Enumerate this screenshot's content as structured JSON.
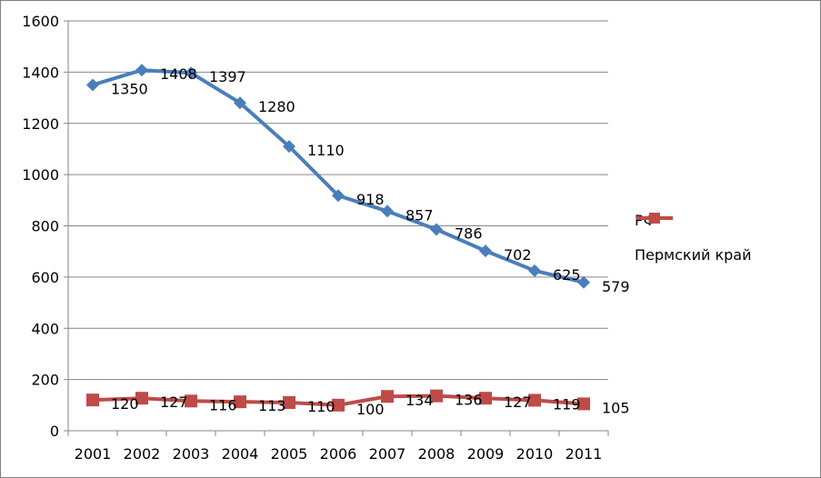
{
  "chart_data": {
    "type": "line",
    "title": "",
    "xlabel": "",
    "ylabel": "",
    "x": [
      "2001",
      "2002",
      "2003",
      "2004",
      "2005",
      "2006",
      "2007",
      "2008",
      "2009",
      "2010",
      "2011"
    ],
    "ylim": [
      0,
      1600
    ],
    "yticks": [
      0,
      200,
      400,
      600,
      800,
      1000,
      1200,
      1400,
      1600
    ],
    "grid": true,
    "legend_position": "right",
    "series": [
      {
        "name": "РФ",
        "color": "#4a7ebb",
        "marker": "diamond",
        "values": [
          1350,
          1408,
          1397,
          1280,
          1110,
          918,
          857,
          786,
          702,
          625,
          579
        ]
      },
      {
        "name": "Пермский край",
        "color": "#be4b48",
        "marker": "square",
        "values": [
          120,
          127,
          116,
          113,
          110,
          100,
          134,
          136,
          127,
          119,
          105
        ]
      }
    ]
  }
}
